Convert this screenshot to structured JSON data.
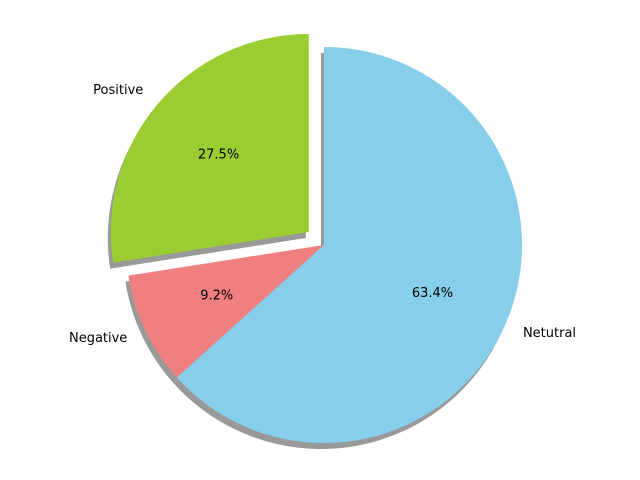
{
  "chart_data": {
    "type": "pie",
    "title": "",
    "slices": [
      {
        "label": "Positive",
        "value": 27.5,
        "percent_label": "27.5%",
        "color": "#9acd32",
        "exploded": true
      },
      {
        "label": "Negative",
        "value": 9.2,
        "percent_label": "9.2%",
        "color": "#f08080",
        "exploded": false
      },
      {
        "label": "Netutral",
        "value": 63.4,
        "percent_label": "63.4%",
        "color": "#87ceeb",
        "exploded": false
      }
    ],
    "start_angle_deg": 90,
    "direction": "counterclockwise",
    "shadow": true,
    "shadow_color": "#999999"
  }
}
